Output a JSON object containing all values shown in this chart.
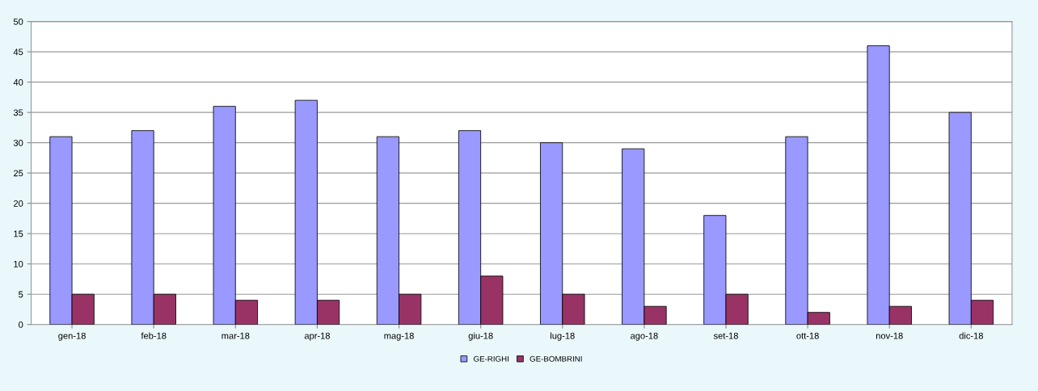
{
  "chart_data": {
    "type": "bar",
    "categories": [
      "gen-18",
      "feb-18",
      "mar-18",
      "apr-18",
      "mag-18",
      "giu-18",
      "lug-18",
      "ago-18",
      "set-18",
      "ott-18",
      "nov-18",
      "dic-18"
    ],
    "series": [
      {
        "name": "GE-RIGHI",
        "color": "#9999ff",
        "values": [
          31,
          32,
          36,
          37,
          31,
          32,
          30,
          29,
          18,
          31,
          46,
          35
        ]
      },
      {
        "name": "GE-BOMBRINI",
        "color": "#993366",
        "values": [
          5,
          5,
          4,
          4,
          5,
          8,
          5,
          3,
          5,
          2,
          3,
          4
        ]
      }
    ],
    "ylim": [
      0,
      50
    ],
    "yticks": [
      0,
      5,
      10,
      15,
      20,
      25,
      30,
      35,
      40,
      45,
      50
    ],
    "grid": "y",
    "legend": "bottom"
  }
}
